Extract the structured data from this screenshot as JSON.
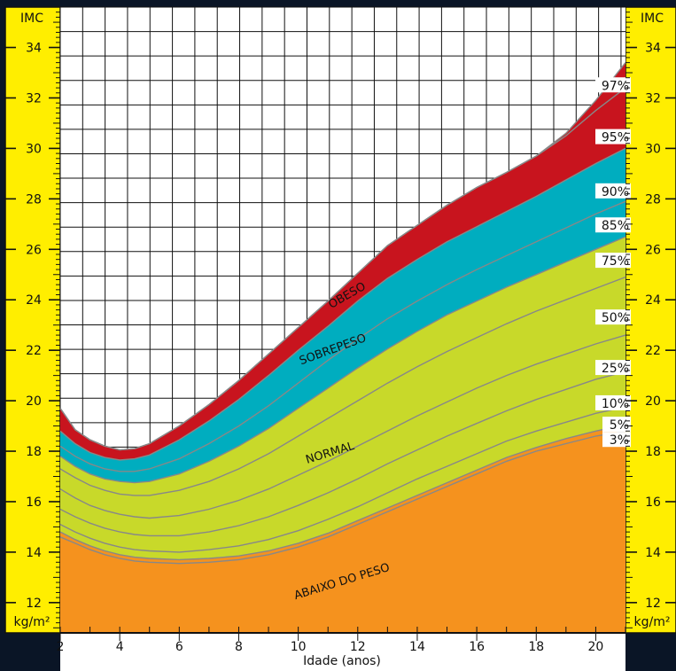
{
  "colors": {
    "background": "#0a1526",
    "panel": "#ffee00",
    "grid": "#111111",
    "obese": "#c8141e",
    "overweight": "#00adbf",
    "normal": "#c8d92a",
    "underweight": "#f5921e",
    "curve": "#888888",
    "text": "#111111"
  },
  "chart_data": {
    "type": "area",
    "xlabel": "Idade (anos)",
    "ylabel": "IMC",
    "y_unit": "kg/m²",
    "xlim": [
      2,
      21
    ],
    "ylim": [
      10.8,
      35.6
    ],
    "x_ticks": [
      "2",
      "4",
      "6",
      "8",
      "10",
      "12",
      "14",
      "16",
      "18",
      "20"
    ],
    "y_ticks": [
      "12",
      "14",
      "16",
      "18",
      "20",
      "22",
      "24",
      "26",
      "28",
      "30",
      "32",
      "34"
    ],
    "x": [
      2,
      2.5,
      3,
      3.5,
      4,
      4.5,
      5,
      6,
      7,
      8,
      9,
      10,
      11,
      12,
      13,
      14,
      15,
      16,
      17,
      18,
      19,
      20,
      21
    ],
    "series": [
      {
        "name": "3%",
        "values": [
          14.6,
          14.35,
          14.1,
          13.9,
          13.75,
          13.65,
          13.6,
          13.55,
          13.6,
          13.7,
          13.9,
          14.2,
          14.6,
          15.1,
          15.6,
          16.1,
          16.6,
          17.1,
          17.6,
          18.0,
          18.3,
          18.6,
          18.8
        ]
      },
      {
        "name": "5%",
        "values": [
          14.8,
          14.5,
          14.25,
          14.05,
          13.9,
          13.8,
          13.75,
          13.7,
          13.75,
          13.85,
          14.05,
          14.35,
          14.75,
          15.25,
          15.75,
          16.25,
          16.75,
          17.25,
          17.75,
          18.15,
          18.5,
          18.8,
          19.05
        ]
      },
      {
        "name": "10%",
        "values": [
          15.1,
          14.8,
          14.55,
          14.35,
          14.2,
          14.1,
          14.05,
          14.0,
          14.1,
          14.25,
          14.5,
          14.85,
          15.3,
          15.8,
          16.35,
          16.9,
          17.4,
          17.9,
          18.4,
          18.8,
          19.15,
          19.5,
          19.75
        ]
      },
      {
        "name": "25%",
        "values": [
          15.7,
          15.4,
          15.15,
          14.95,
          14.8,
          14.7,
          14.65,
          14.65,
          14.8,
          15.05,
          15.4,
          15.85,
          16.35,
          16.9,
          17.5,
          18.05,
          18.6,
          19.1,
          19.6,
          20.05,
          20.45,
          20.85,
          21.15
        ]
      },
      {
        "name": "50%",
        "values": [
          16.5,
          16.15,
          15.85,
          15.65,
          15.5,
          15.4,
          15.35,
          15.45,
          15.7,
          16.05,
          16.5,
          17.05,
          17.6,
          18.2,
          18.8,
          19.4,
          19.95,
          20.5,
          21.0,
          21.45,
          21.85,
          22.25,
          22.6
        ]
      },
      {
        "name": "75%",
        "values": [
          17.3,
          16.95,
          16.65,
          16.45,
          16.3,
          16.25,
          16.25,
          16.45,
          16.8,
          17.3,
          17.9,
          18.6,
          19.3,
          20.0,
          20.7,
          21.35,
          21.95,
          22.5,
          23.05,
          23.55,
          24.0,
          24.45,
          24.9
        ]
      },
      {
        "name": "85%",
        "values": [
          17.8,
          17.4,
          17.1,
          16.9,
          16.8,
          16.75,
          16.8,
          17.1,
          17.6,
          18.2,
          18.9,
          19.7,
          20.5,
          21.3,
          22.05,
          22.75,
          23.4,
          23.95,
          24.5,
          25.0,
          25.5,
          26.0,
          26.5
        ]
      },
      {
        "name": "90%",
        "values": [
          18.2,
          17.8,
          17.5,
          17.3,
          17.2,
          17.2,
          17.3,
          17.7,
          18.3,
          19.0,
          19.8,
          20.7,
          21.6,
          22.45,
          23.25,
          23.95,
          24.6,
          25.2,
          25.75,
          26.3,
          26.85,
          27.4,
          27.9
        ]
      },
      {
        "name": "95%",
        "values": [
          18.8,
          18.3,
          17.95,
          17.75,
          17.65,
          17.7,
          17.85,
          18.45,
          19.2,
          20.05,
          21.0,
          22.0,
          22.95,
          23.95,
          24.85,
          25.6,
          26.3,
          26.9,
          27.5,
          28.1,
          28.75,
          29.4,
          30.0
        ]
      },
      {
        "name": "97%",
        "values": [
          19.7,
          18.85,
          18.45,
          18.2,
          18.05,
          18.1,
          18.3,
          19.0,
          19.85,
          20.8,
          21.85,
          22.9,
          23.95,
          25.05,
          26.15,
          26.95,
          27.75,
          28.45,
          29.05,
          29.7,
          30.5,
          31.5,
          32.4
        ]
      }
    ],
    "top_boundary": [
      19.7,
      18.85,
      18.45,
      18.2,
      18.05,
      18.1,
      18.3,
      19.0,
      19.85,
      20.8,
      21.85,
      22.9,
      23.95,
      25.05,
      26.15,
      26.95,
      27.75,
      28.45,
      29.05,
      29.7,
      30.6,
      31.9,
      33.4
    ],
    "zones": [
      {
        "name": "ABAIXO DO PESO",
        "from": "bottom",
        "to": "5%",
        "color_key": "underweight"
      },
      {
        "name": "NORMAL",
        "from": "5%",
        "to": "85%",
        "color_key": "normal"
      },
      {
        "name": "SOBREPESO",
        "from": "85%",
        "to": "95%",
        "color_key": "overweight"
      },
      {
        "name": "OBESO",
        "from": "95%",
        "to": "top",
        "color_key": "obese"
      }
    ],
    "zone_labels": [
      {
        "text": "OBESO",
        "x": 11.7,
        "y": 24.05,
        "angle": -30
      },
      {
        "text": "SOBREPESO",
        "x": 11.2,
        "y": 21.9,
        "angle": -20
      },
      {
        "text": "NORMAL",
        "x": 11.1,
        "y": 17.8,
        "angle": -17
      },
      {
        "text": "ABAIXO DO PESO",
        "x": 11.5,
        "y": 12.7,
        "angle": -17
      }
    ],
    "percentile_label_y": [
      {
        "text": "97%",
        "y": 32.5
      },
      {
        "text": "95%",
        "y": 30.45
      },
      {
        "text": "90%",
        "y": 28.3
      },
      {
        "text": "85%",
        "y": 26.95
      },
      {
        "text": "75%",
        "y": 25.55
      },
      {
        "text": "50%",
        "y": 23.3
      },
      {
        "text": "25%",
        "y": 21.3
      },
      {
        "text": "10%",
        "y": 19.9
      },
      {
        "text": "5%",
        "y": 19.05
      },
      {
        "text": "3%",
        "y": 18.45
      }
    ]
  }
}
